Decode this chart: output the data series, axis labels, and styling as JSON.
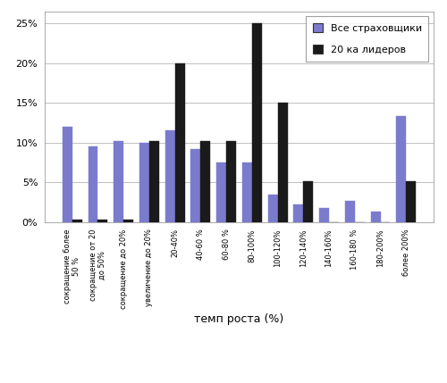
{
  "categories": [
    "сокращение более\n50 %",
    "сокращение от 20\nдо 50%",
    "сокращение до 20%",
    "увеличение до 20%",
    "20-40%",
    "40-60 %",
    "60-80 %",
    "80-100%",
    "100-120%",
    "120-140%",
    "140-160%",
    "160-180 %",
    "180-200%",
    "более 200%"
  ],
  "all_insurers": [
    12.0,
    9.5,
    10.2,
    10.0,
    11.5,
    9.2,
    7.5,
    7.5,
    3.5,
    2.2,
    1.8,
    2.7,
    1.3,
    13.3
  ],
  "top20": [
    0.3,
    0.3,
    0.3,
    10.2,
    20.0,
    10.2,
    10.2,
    25.0,
    15.0,
    5.2,
    0.0,
    0.0,
    0.0,
    5.2
  ],
  "bar_color_all": "#7b7bce",
  "bar_color_top20": "#1a1a1a",
  "xlabel": "темп роста (%)",
  "ylim_max": 26.5,
  "yticks": [
    0,
    5,
    10,
    15,
    20,
    25
  ],
  "legend_all": "Все страховщики",
  "legend_top20": "20 ка лидеров",
  "background_color": "#ffffff",
  "grid_color": "#c0c0c0"
}
